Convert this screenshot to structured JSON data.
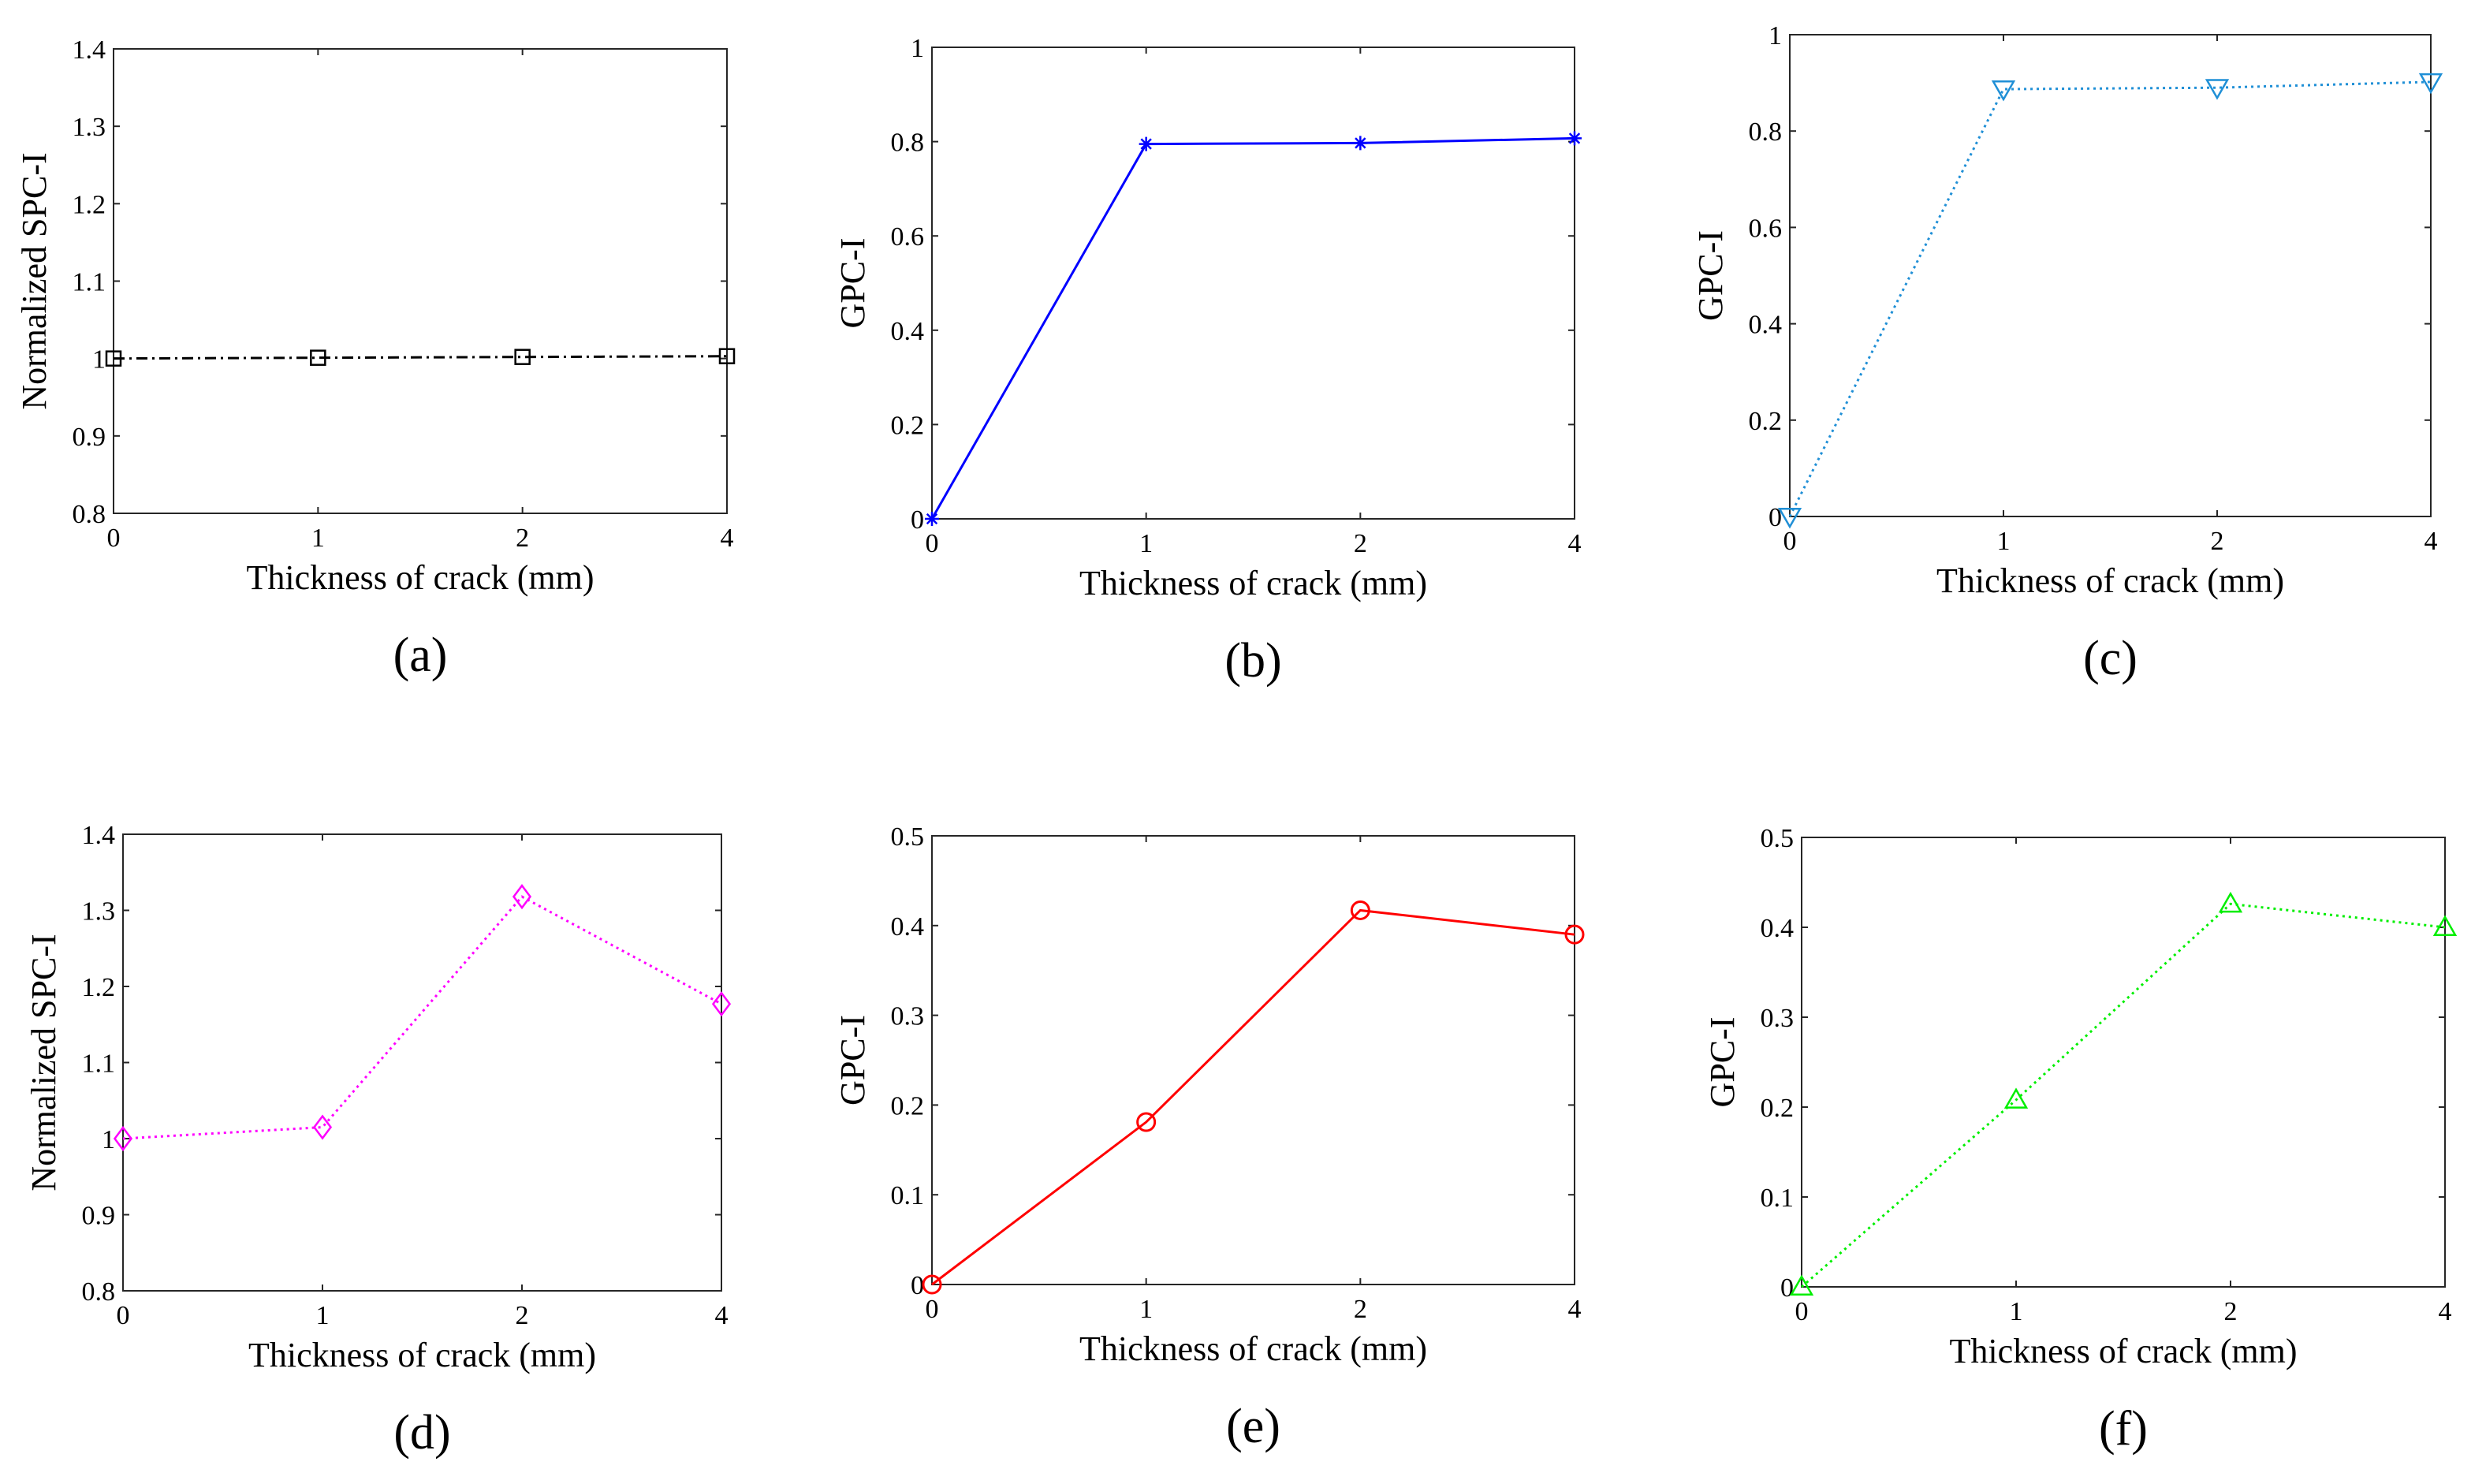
{
  "chart_data": [
    {
      "id": "a",
      "type": "line",
      "caption": "(a)",
      "xlabel": "Thickness of crack (mm)",
      "ylabel": "Normalized SPC-I",
      "categories": [
        "0",
        "1",
        "2",
        "4"
      ],
      "ylim": [
        0.8,
        1.4
      ],
      "yticks": [
        "0.8",
        "0.9",
        "1",
        "1.1",
        "1.2",
        "1.3",
        "1.4"
      ],
      "series": [
        {
          "name": "Normalized SPC-I",
          "values": [
            1.0,
            1.001,
            1.002,
            1.003
          ],
          "color": "#000000",
          "marker": "square",
          "linestyle": "dashdot"
        }
      ],
      "grid": false
    },
    {
      "id": "b",
      "type": "line",
      "caption": "(b)",
      "xlabel": "Thickness of crack (mm)",
      "ylabel": "GPC-I",
      "categories": [
        "0",
        "1",
        "2",
        "4"
      ],
      "ylim": [
        0,
        1
      ],
      "yticks": [
        "0",
        "0.2",
        "0.4",
        "0.6",
        "0.8",
        "1"
      ],
      "series": [
        {
          "name": "GPC-I",
          "values": [
            0.0,
            0.795,
            0.797,
            0.807
          ],
          "color": "#0000ff",
          "marker": "asterisk",
          "linestyle": "solid"
        }
      ],
      "grid": false
    },
    {
      "id": "c",
      "type": "line",
      "caption": "(c)",
      "xlabel": "Thickness of crack (mm)",
      "ylabel": "GPC-I",
      "categories": [
        "0",
        "1",
        "2",
        "4"
      ],
      "ylim": [
        0,
        1
      ],
      "yticks": [
        "0",
        "0.2",
        "0.4",
        "0.6",
        "0.8",
        "1"
      ],
      "series": [
        {
          "name": "GPC-I",
          "values": [
            0.0,
            0.887,
            0.89,
            0.902
          ],
          "color": "#1f8fd6",
          "marker": "triangle-down",
          "linestyle": "dotted"
        }
      ],
      "grid": false
    },
    {
      "id": "d",
      "type": "line",
      "caption": "(d)",
      "xlabel": "Thickness of crack (mm)",
      "ylabel": "Normalized SPC-I",
      "categories": [
        "0",
        "1",
        "2",
        "4"
      ],
      "ylim": [
        0.8,
        1.4
      ],
      "yticks": [
        "0.8",
        "0.9",
        "1",
        "1.1",
        "1.2",
        "1.3",
        "1.4"
      ],
      "series": [
        {
          "name": "Normalized SPC-I",
          "values": [
            1.0,
            1.015,
            1.318,
            1.177
          ],
          "color": "#ff00ff",
          "marker": "diamond",
          "linestyle": "dotted"
        }
      ],
      "grid": false
    },
    {
      "id": "e",
      "type": "line",
      "caption": "(e)",
      "xlabel": "Thickness of crack (mm)",
      "ylabel": "GPC-I",
      "categories": [
        "0",
        "1",
        "2",
        "4"
      ],
      "ylim": [
        0,
        0.5
      ],
      "yticks": [
        "0",
        "0.1",
        "0.2",
        "0.3",
        "0.4",
        "0.5"
      ],
      "series": [
        {
          "name": "GPC-I",
          "values": [
            0.0,
            0.181,
            0.417,
            0.39
          ],
          "color": "#ff0000",
          "marker": "circle",
          "linestyle": "solid"
        }
      ],
      "grid": false
    },
    {
      "id": "f",
      "type": "line",
      "caption": "(f)",
      "xlabel": "Thickness of crack (mm)",
      "ylabel": "GPC-I",
      "categories": [
        "0",
        "1",
        "2",
        "4"
      ],
      "ylim": [
        0,
        0.5
      ],
      "yticks": [
        "0",
        "0.1",
        "0.2",
        "0.3",
        "0.4",
        "0.5"
      ],
      "series": [
        {
          "name": "GPC-I",
          "values": [
            0.0,
            0.208,
            0.426,
            0.4
          ],
          "color": "#00ee00",
          "marker": "triangle-up",
          "linestyle": "dotted"
        }
      ],
      "grid": false
    }
  ]
}
